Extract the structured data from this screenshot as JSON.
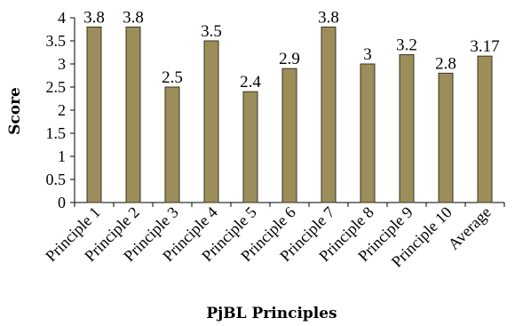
{
  "chart_data": {
    "type": "bar",
    "title": "",
    "xlabel": "PjBL Principles",
    "ylabel": "Score",
    "ylim": [
      0,
      4
    ],
    "yticks": [
      "0",
      "0.5",
      "1",
      "1.5",
      "2",
      "2.5",
      "3",
      "3.5",
      "4"
    ],
    "categories": [
      "Principle 1",
      "Principle 2",
      "Principle 3",
      "Principle 4",
      "Principle 5",
      "Principle 6",
      "Principle 7",
      "Principle 8",
      "Principle 9",
      "Principle 10",
      "Average"
    ],
    "values": [
      3.8,
      3.8,
      2.5,
      3.5,
      2.4,
      2.9,
      3.8,
      3.0,
      3.2,
      2.8,
      3.17
    ],
    "data_labels": [
      "3.8",
      "3.8",
      "2.5",
      "3.5",
      "2.4",
      "2.9",
      "3.8",
      "3",
      "3.2",
      "2.8",
      "3.17"
    ],
    "bar_color": "#9b8e5a",
    "bar_edge_color": "#3a3320",
    "grid": false,
    "legend": "none"
  }
}
